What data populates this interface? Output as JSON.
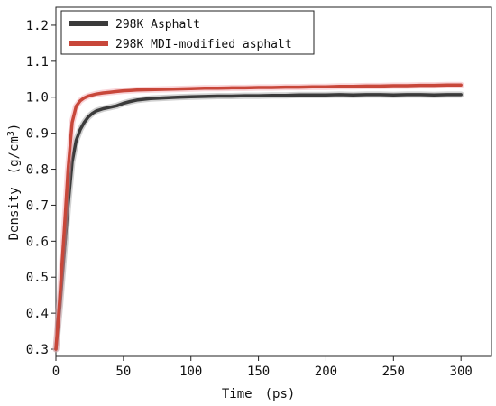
{
  "chart_data": {
    "type": "line",
    "title": "",
    "xlabel": "Time　(ps)",
    "ylabel_main": "Density　(g/cm",
    "ylabel_sup": "3",
    "ylabel_tail": ")",
    "xlim": [
      0,
      300
    ],
    "ylim": [
      0.28,
      1.25
    ],
    "x_ticks": [
      0,
      50,
      100,
      150,
      200,
      250,
      300
    ],
    "x_tick_labels": [
      "0",
      "50",
      "100",
      "150",
      "200",
      "250",
      "300"
    ],
    "y_ticks": [
      0.3,
      0.4,
      0.5,
      0.6,
      0.7,
      0.8,
      0.9,
      1.0,
      1.1,
      1.2
    ],
    "y_tick_labels": [
      "0.3",
      "0.4",
      "0.5",
      "0.6",
      "0.7",
      "0.8",
      "0.9",
      "1.0",
      "1.1",
      "1.2"
    ],
    "grid": false,
    "legend_position": "top-left",
    "series": [
      {
        "name": "298K Asphalt",
        "color": "#3b3b3b",
        "x": [
          0,
          3,
          6,
          9,
          12,
          15,
          18,
          21,
          24,
          27,
          30,
          35,
          40,
          45,
          50,
          55,
          60,
          70,
          80,
          90,
          100,
          110,
          120,
          130,
          140,
          150,
          160,
          170,
          180,
          190,
          200,
          210,
          220,
          230,
          240,
          250,
          260,
          270,
          280,
          290,
          300
        ],
        "y": [
          0.3,
          0.42,
          0.56,
          0.7,
          0.82,
          0.88,
          0.91,
          0.93,
          0.945,
          0.955,
          0.962,
          0.968,
          0.972,
          0.976,
          0.983,
          0.988,
          0.992,
          0.996,
          0.998,
          1.0,
          1.001,
          1.002,
          1.003,
          1.003,
          1.004,
          1.004,
          1.005,
          1.005,
          1.006,
          1.006,
          1.006,
          1.007,
          1.006,
          1.007,
          1.007,
          1.006,
          1.007,
          1.007,
          1.006,
          1.007,
          1.007
        ]
      },
      {
        "name": "298K MDI-modified asphalt",
        "color": "#c8473a",
        "x": [
          0,
          3,
          6,
          9,
          12,
          15,
          18,
          21,
          24,
          27,
          30,
          35,
          40,
          45,
          50,
          55,
          60,
          70,
          80,
          90,
          100,
          110,
          120,
          130,
          140,
          150,
          160,
          170,
          180,
          190,
          200,
          210,
          220,
          230,
          240,
          250,
          260,
          270,
          280,
          290,
          300
        ],
        "y": [
          0.3,
          0.45,
          0.62,
          0.8,
          0.93,
          0.975,
          0.99,
          0.998,
          1.003,
          1.006,
          1.009,
          1.012,
          1.014,
          1.016,
          1.018,
          1.019,
          1.02,
          1.021,
          1.022,
          1.023,
          1.024,
          1.025,
          1.025,
          1.026,
          1.026,
          1.027,
          1.027,
          1.028,
          1.028,
          1.029,
          1.029,
          1.03,
          1.03,
          1.031,
          1.031,
          1.032,
          1.032,
          1.033,
          1.033,
          1.034,
          1.034
        ]
      }
    ]
  }
}
